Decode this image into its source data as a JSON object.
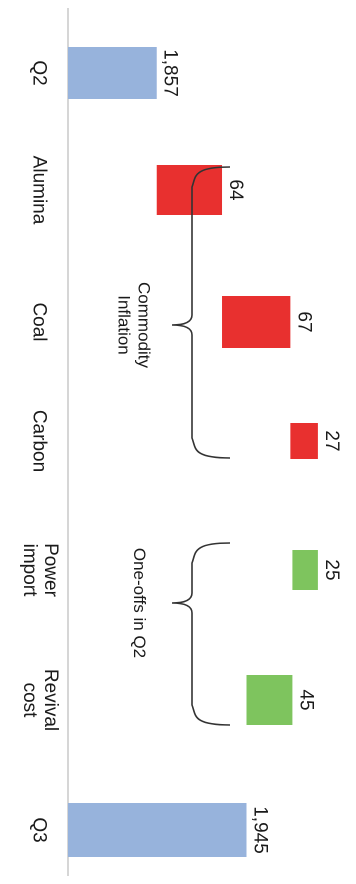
{
  "chart_data": {
    "type": "bar",
    "subtype": "waterfall",
    "orientation": "horizontal",
    "text_rotation": "rotated 90 degrees clockwise",
    "categories": [
      "Q2",
      "Alumina",
      "Coal",
      "Carbon",
      "Power import",
      "Revival cost",
      "Q3"
    ],
    "category_lines": [
      [
        "Q2"
      ],
      [
        "Alumina"
      ],
      [
        "Coal"
      ],
      [
        "Carbon"
      ],
      [
        "Power",
        "import"
      ],
      [
        "Revival",
        "cost"
      ],
      [
        "Q3"
      ]
    ],
    "values": [
      1857,
      64,
      67,
      27,
      -25,
      -45,
      1945
    ],
    "value_labels": [
      "1,857",
      "64",
      "67",
      "27",
      "25",
      "45",
      "1,945"
    ],
    "bar_kinds": [
      "total",
      "increase",
      "increase",
      "increase",
      "decrease",
      "decrease",
      "total"
    ],
    "colors": {
      "total": "#97b3dc",
      "increase": "#e8302f",
      "decrease": "#7ec45e",
      "axis": "#c8c8c8",
      "bracket": "#333333"
    },
    "groups": [
      {
        "label_lines": [
          "Commodity",
          "Inflation"
        ],
        "from": "Alumina",
        "to": "Carbon"
      },
      {
        "label_lines": [
          "One-offs in Q2"
        ],
        "from": "Power import",
        "to": "Revival cost"
      }
    ],
    "value_axis": {
      "visible_range": [
        1770,
        1970
      ],
      "ticks_shown": false
    },
    "legend": "none",
    "grid": false
  }
}
